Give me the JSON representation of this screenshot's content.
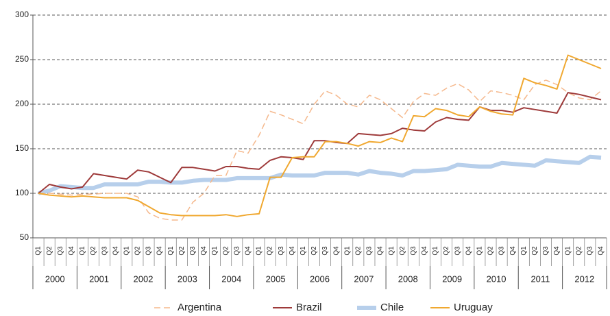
{
  "chart_data": {
    "type": "line",
    "categories": [
      "Q1",
      "Q2",
      "Q3",
      "Q4",
      "Q1",
      "Q2",
      "Q3",
      "Q4",
      "Q1",
      "Q2",
      "Q3",
      "Q4",
      "Q1",
      "Q2",
      "Q3",
      "Q4",
      "Q1",
      "Q2",
      "Q3",
      "Q4",
      "Q1",
      "Q2",
      "Q3",
      "Q4",
      "Q1",
      "Q2",
      "Q3",
      "Q4",
      "Q1",
      "Q2",
      "Q3",
      "Q4",
      "Q1",
      "Q2",
      "Q3",
      "Q4",
      "Q1",
      "Q2",
      "Q3",
      "Q4",
      "Q1",
      "Q2",
      "Q3",
      "Q4",
      "Q1",
      "Q2",
      "Q3",
      "Q4",
      "Q1",
      "Q2",
      "Q3",
      "Q4"
    ],
    "years": [
      "2000",
      "2001",
      "2002",
      "2003",
      "2004",
      "2005",
      "2006",
      "2007",
      "2008",
      "2009",
      "2010",
      "2011",
      "2012"
    ],
    "ylim": [
      50,
      300
    ],
    "yticks": [
      50,
      100,
      150,
      200,
      250,
      300
    ],
    "grid": true,
    "legend": "bottom",
    "series": [
      {
        "name": "Argentina",
        "color": "#f5b88c",
        "style": "dashed",
        "values": [
          100,
          100,
          99,
          98,
          99,
          99,
          100,
          100,
          100,
          96,
          78,
          72,
          70,
          70,
          90,
          100,
          120,
          120,
          148,
          145,
          165,
          192,
          188,
          183,
          178,
          200,
          215,
          210,
          200,
          197,
          210,
          205,
          195,
          185,
          203,
          212,
          210,
          218,
          223,
          216,
          203,
          215,
          213,
          210,
          205,
          222,
          227,
          222,
          213,
          207,
          205,
          215
        ]
      },
      {
        "name": "Brazil",
        "color": "#9e3a3a",
        "style": "solid",
        "values": [
          100,
          110,
          107,
          105,
          107,
          122,
          120,
          118,
          116,
          126,
          124,
          118,
          112,
          129,
          129,
          127,
          125,
          130,
          130,
          128,
          127,
          137,
          141,
          140,
          138,
          159,
          159,
          157,
          156,
          167,
          166,
          165,
          167,
          173,
          171,
          170,
          180,
          185,
          183,
          182,
          197,
          193,
          193,
          191,
          196,
          194,
          192,
          190,
          213,
          211,
          208,
          205
        ]
      },
      {
        "name": "Chile",
        "color": "#b7cfeb",
        "style": "thick",
        "values": [
          100,
          103,
          108,
          107,
          106,
          106,
          110,
          110,
          110,
          110,
          113,
          113,
          112,
          112,
          114,
          115,
          115,
          115,
          117,
          117,
          117,
          117,
          121,
          120,
          120,
          120,
          123,
          123,
          123,
          121,
          125,
          123,
          122,
          120,
          125,
          125,
          126,
          127,
          132,
          131,
          130,
          130,
          134,
          133,
          132,
          131,
          137,
          136,
          135,
          134,
          141,
          140
        ]
      },
      {
        "name": "Uruguay",
        "color": "#f0a830",
        "style": "solid",
        "values": [
          100,
          98,
          97,
          96,
          97,
          96,
          95,
          95,
          95,
          92,
          85,
          78,
          76,
          75,
          75,
          75,
          75,
          76,
          74,
          76,
          77,
          118,
          118,
          140,
          141,
          141,
          158,
          158,
          156,
          153,
          158,
          157,
          162,
          158,
          187,
          186,
          195,
          193,
          188,
          186,
          197,
          192,
          189,
          188,
          229,
          224,
          221,
          217,
          255,
          250,
          245,
          240
        ]
      }
    ]
  }
}
